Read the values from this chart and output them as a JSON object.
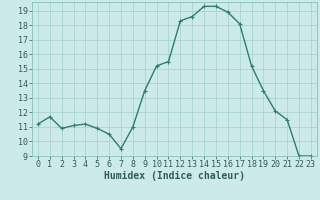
{
  "x": [
    0,
    1,
    2,
    3,
    4,
    5,
    6,
    7,
    8,
    9,
    10,
    11,
    12,
    13,
    14,
    15,
    16,
    17,
    18,
    19,
    20,
    21,
    22,
    23
  ],
  "y": [
    11.2,
    11.7,
    10.9,
    11.1,
    11.2,
    10.9,
    10.5,
    9.5,
    11.0,
    13.5,
    15.2,
    15.5,
    18.3,
    18.6,
    19.3,
    19.3,
    18.9,
    18.1,
    15.2,
    13.5,
    12.1,
    11.5,
    9.0,
    9.0
  ],
  "line_color": "#2e7d6e",
  "marker": "+",
  "marker_size": 3,
  "bg_color": "#cceae8",
  "grid_color": "#aad4d2",
  "xlabel": "Humidex (Indice chaleur)",
  "ylim": [
    9,
    19.6
  ],
  "xlim": [
    -0.5,
    23.5
  ],
  "yticks": [
    9,
    10,
    11,
    12,
    13,
    14,
    15,
    16,
    17,
    18,
    19
  ],
  "xticks": [
    0,
    1,
    2,
    3,
    4,
    5,
    6,
    7,
    8,
    9,
    10,
    11,
    12,
    13,
    14,
    15,
    16,
    17,
    18,
    19,
    20,
    21,
    22,
    23
  ],
  "tick_fontsize": 6,
  "xlabel_fontsize": 7,
  "linewidth": 1.0
}
